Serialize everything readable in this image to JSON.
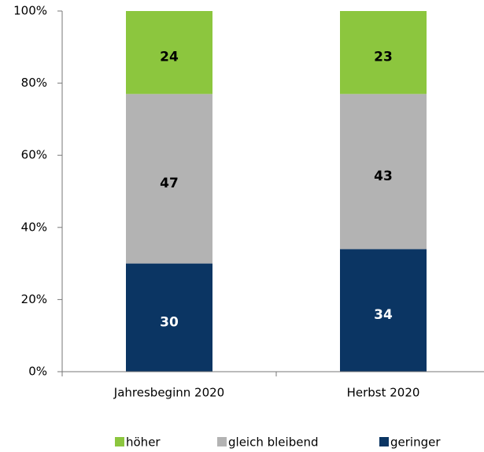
{
  "chart_data": {
    "type": "stacked_bar",
    "categories": [
      "Jahresbeginn 2020",
      "Herbst 2020"
    ],
    "series": [
      {
        "name": "geringer",
        "color": "#0b3563",
        "values": [
          30,
          34
        ]
      },
      {
        "name": "gleich bleibend",
        "color": "#b3b3b3",
        "values": [
          47,
          43
        ]
      },
      {
        "name": "höher",
        "color": "#8cc63e",
        "values": [
          24,
          23
        ]
      }
    ],
    "ylim": [
      0,
      100
    ],
    "yticks": [
      {
        "value": 0,
        "label": "0%"
      },
      {
        "value": 20,
        "label": "20%"
      },
      {
        "value": 40,
        "label": "40%"
      },
      {
        "value": 60,
        "label": "60%"
      },
      {
        "value": 80,
        "label": "80%"
      },
      {
        "value": 100,
        "label": "100%"
      }
    ],
    "legend": "bottom"
  }
}
